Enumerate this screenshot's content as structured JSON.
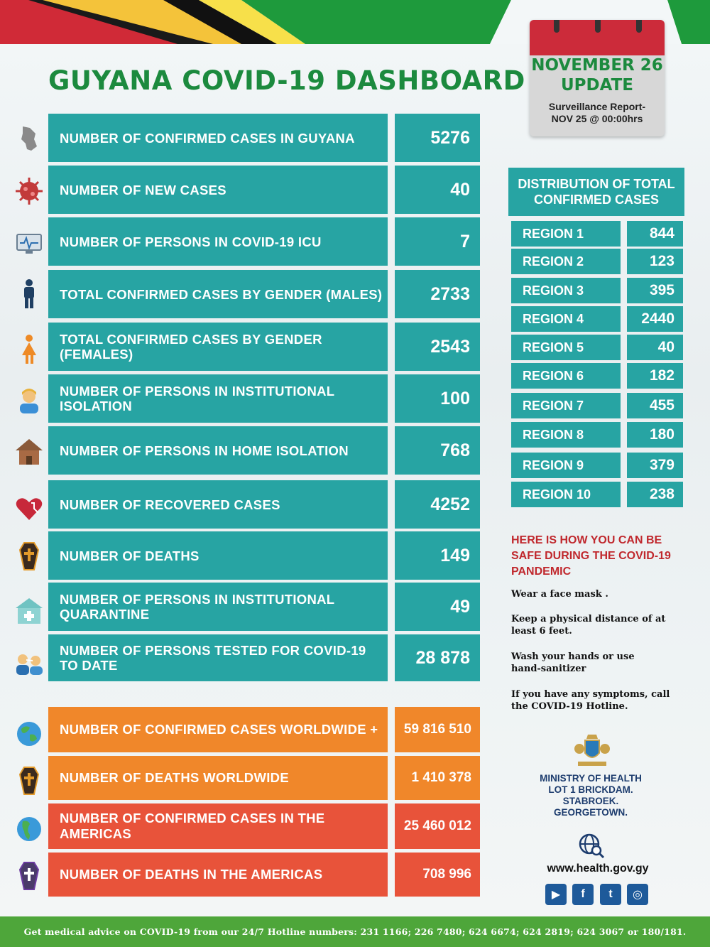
{
  "title": "GUYANA COVID-19 DASHBOARD",
  "calendar": {
    "date_line1": "NOVEMBER 26",
    "date_line2": "UPDATE",
    "sub_line1": "Surveillance Report-",
    "sub_line2": "NOV 25 @ 00:00hrs"
  },
  "stats": [
    {
      "label": "NUMBER OF CONFIRMED CASES IN GUYANA",
      "value": "5276",
      "icon": "guyana-map-icon"
    },
    {
      "label": "NUMBER OF NEW CASES",
      "value": "40",
      "icon": "virus-icon"
    },
    {
      "label": "NUMBER OF PERSONS  IN COVID-19 ICU",
      "value": "7",
      "icon": "monitor-icon"
    },
    {
      "label": "TOTAL CONFIRMED CASES BY GENDER (MALES)",
      "value": "2733",
      "icon": "male-icon"
    },
    {
      "label": "TOTAL CONFIRMED CASES BY GENDER (FEMALES)",
      "value": "2543",
      "icon": "female-icon"
    },
    {
      "label": "NUMBER OF PERSONS IN INSTITUTIONAL ISOLATION",
      "value": "100",
      "icon": "nurse-icon"
    },
    {
      "label": "NUMBER OF PERSONS IN HOME ISOLATION",
      "value": "768",
      "icon": "house-icon"
    },
    {
      "label": "NUMBER OF RECOVERED CASES",
      "value": "4252",
      "icon": "heart-icon"
    },
    {
      "label": "NUMBER OF DEATHS",
      "value": "149",
      "icon": "coffin-icon"
    },
    {
      "label": "NUMBER OF PERSONS IN INSTITUTIONAL QUARANTINE",
      "value": "49",
      "icon": "hospital-icon"
    },
    {
      "label": "NUMBER OF PERSONS TESTED FOR COVID-19 TO DATE",
      "value": "28 878",
      "icon": "swab-test-icon"
    }
  ],
  "world": [
    {
      "label": "NUMBER  OF CONFIRMED CASES WORLDWIDE +",
      "value": "59 816 510",
      "icon": "globe-icon",
      "color": "#f0872a"
    },
    {
      "label": "NUMBER OF DEATHS WORLDWIDE",
      "value": "1 410 378",
      "icon": "coffin-icon",
      "color": "#f0872a"
    },
    {
      "label": "NUMBER OF CONFIRMED CASES IN THE AMERICAS",
      "value": "25 460 012",
      "icon": "globe-icon",
      "color": "#e8533a"
    },
    {
      "label": "NUMBER OF DEATHS IN THE AMERICAS",
      "value": "708 996",
      "icon": "coffin-icon",
      "color": "#e8533a"
    }
  ],
  "distribution": {
    "heading": "DISTRIBUTION OF TOTAL CONFIRMED CASES",
    "regions": [
      {
        "label": "REGION 1",
        "value": "844"
      },
      {
        "label": "REGION 2",
        "value": "123"
      },
      {
        "label": "REGION 3",
        "value": "395"
      },
      {
        "label": "REGION 4",
        "value": "2440"
      },
      {
        "label": "REGION 5",
        "value": "40"
      },
      {
        "label": "REGION 6",
        "value": "182"
      },
      {
        "label": "REGION 7",
        "value": "455"
      },
      {
        "label": "REGION 8",
        "value": "180"
      },
      {
        "label": "REGION 9",
        "value": "379"
      },
      {
        "label": "REGION 10",
        "value": "238"
      }
    ]
  },
  "safety": {
    "heading": "HERE IS HOW YOU CAN BE SAFE DURING THE COVID-19 PANDEMIC",
    "tips": [
      "Wear a face mask .",
      "Keep a physical distance of at least 6 feet.",
      "Wash your hands or use hand-sanitizer",
      "If you have any symptoms, call the COVID-19 Hotline."
    ]
  },
  "ministry": {
    "line1": "MINISTRY OF HEALTH",
    "line2": "LOT 1 BRICKDAM.",
    "line3": "STABROEK.",
    "line4": "GEORGETOWN.",
    "website": "www.health.gov.gy"
  },
  "footer": "Get medical advice on COVID-19 from our 24/7 Hotline numbers: 231 1166; 226 7480; 624 6674; 624 2819; 624 3067 or 180/181.",
  "colors": {
    "teal": "#27a4a3",
    "green": "#1c8a3e",
    "red": "#c0282d",
    "orange": "#f0872a",
    "red_orange": "#e8533a"
  }
}
